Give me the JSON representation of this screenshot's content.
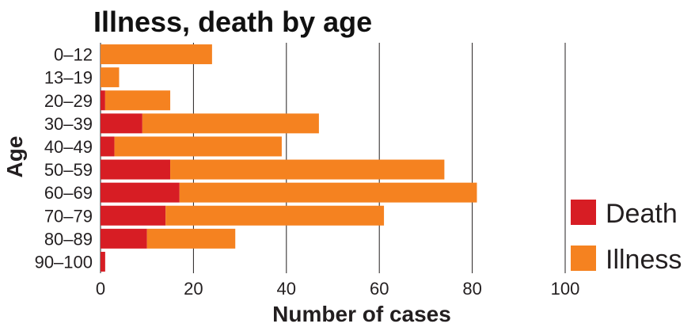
{
  "chart_data": {
    "type": "bar",
    "orientation": "horizontal",
    "stacked": true,
    "title": "Illness, death by age",
    "xlabel": "Number of cases",
    "ylabel": "Age",
    "xlim": [
      0,
      100
    ],
    "xticks": [
      "0",
      "20",
      "40",
      "60",
      "80",
      "100"
    ],
    "categories": [
      "0–12",
      "13–19",
      "20–29",
      "30–39",
      "40–49",
      "50–59",
      "60–69",
      "70–79",
      "80–89",
      "90–100"
    ],
    "series": [
      {
        "name": "Death",
        "color": "#d71d24",
        "values": [
          0,
          0,
          1,
          9,
          3,
          15,
          17,
          14,
          10,
          1
        ]
      },
      {
        "name": "Illness",
        "color": "#f58220",
        "values": [
          24,
          4,
          14,
          38,
          36,
          59,
          64,
          47,
          19,
          0
        ]
      }
    ],
    "grid": "vertical",
    "legend_position": "bottom-right"
  }
}
